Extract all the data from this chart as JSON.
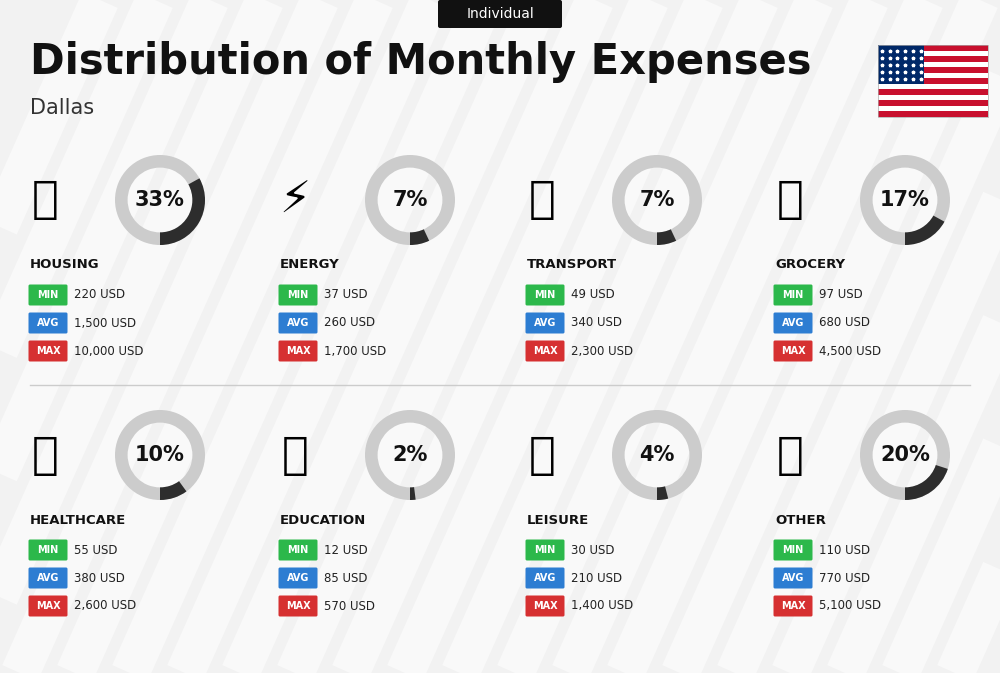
{
  "title": "Distribution of Monthly Expenses",
  "subtitle": "Individual",
  "city": "Dallas",
  "background_color": "#f2f2f2",
  "categories": [
    {
      "name": "HOUSING",
      "percent": 33,
      "min": "220 USD",
      "avg": "1,500 USD",
      "max": "10,000 USD",
      "row": 0,
      "col": 0
    },
    {
      "name": "ENERGY",
      "percent": 7,
      "min": "37 USD",
      "avg": "260 USD",
      "max": "1,700 USD",
      "row": 0,
      "col": 1
    },
    {
      "name": "TRANSPORT",
      "percent": 7,
      "min": "49 USD",
      "avg": "340 USD",
      "max": "2,300 USD",
      "row": 0,
      "col": 2
    },
    {
      "name": "GROCERY",
      "percent": 17,
      "min": "97 USD",
      "avg": "680 USD",
      "max": "4,500 USD",
      "row": 0,
      "col": 3
    },
    {
      "name": "HEALTHCARE",
      "percent": 10,
      "min": "55 USD",
      "avg": "380 USD",
      "max": "2,600 USD",
      "row": 1,
      "col": 0
    },
    {
      "name": "EDUCATION",
      "percent": 2,
      "min": "12 USD",
      "avg": "85 USD",
      "max": "570 USD",
      "row": 1,
      "col": 1
    },
    {
      "name": "LEISURE",
      "percent": 4,
      "min": "30 USD",
      "avg": "210 USD",
      "max": "1,400 USD",
      "row": 1,
      "col": 2
    },
    {
      "name": "OTHER",
      "percent": 20,
      "min": "110 USD",
      "avg": "770 USD",
      "max": "5,100 USD",
      "row": 1,
      "col": 3
    }
  ],
  "min_color": "#2cb84b",
  "avg_color": "#2d7dd2",
  "max_color": "#d63031",
  "arc_dark": "#2d2d2d",
  "arc_light": "#cccccc",
  "title_fontsize": 30,
  "subtitle_fontsize": 10,
  "city_fontsize": 15,
  "cat_fontsize": 9.5,
  "val_fontsize": 8.5,
  "pct_fontsize": 15,
  "badge_fontsize": 7,
  "flag_stripes": [
    "#C8102E",
    "#FFFFFF",
    "#C8102E",
    "#FFFFFF",
    "#C8102E",
    "#FFFFFF",
    "#C8102E",
    "#FFFFFF",
    "#C8102E",
    "#FFFFFF",
    "#C8102E",
    "#FFFFFF",
    "#C8102E"
  ],
  "flag_canton": "#002868"
}
